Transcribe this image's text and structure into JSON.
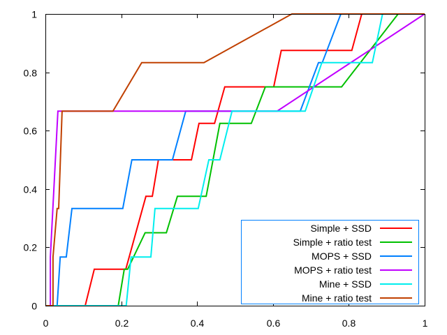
{
  "chart_data": {
    "type": "line",
    "title": "",
    "xlabel": "",
    "ylabel": "",
    "xlim": [
      0,
      1
    ],
    "ylim": [
      0,
      1
    ],
    "xticks": [
      "0",
      "0.2",
      "0.4",
      "0.6",
      "0.8",
      "1"
    ],
    "xtick_values": [
      0,
      0.2,
      0.4,
      0.6,
      0.8,
      1
    ],
    "yticks": [
      "0",
      "0.2",
      "0.4",
      "0.6",
      "0.8",
      "1"
    ],
    "ytick_values": [
      0,
      0.2,
      0.4,
      0.6,
      0.8,
      1
    ],
    "grid": false,
    "legend_position": "bottom-right",
    "series": [
      {
        "name": "Simple + SSD",
        "color": "#ff0000",
        "x": [
          0,
          0.105,
          0.129,
          0.212,
          0.265,
          0.282,
          0.298,
          0.385,
          0.405,
          0.446,
          0.473,
          0.602,
          0.622,
          0.808,
          0.834,
          1
        ],
        "y": [
          0,
          0,
          0.125,
          0.125,
          0.375,
          0.375,
          0.5,
          0.5,
          0.625,
          0.625,
          0.75,
          0.75,
          0.875,
          0.875,
          1,
          1
        ]
      },
      {
        "name": "Simple + ratio test",
        "color": "#00c000",
        "x": [
          0,
          0.192,
          0.208,
          0.217,
          0.263,
          0.319,
          0.348,
          0.424,
          0.46,
          0.543,
          0.58,
          0.781,
          0.93,
          1
        ],
        "y": [
          0,
          0,
          0.125,
          0.125,
          0.25,
          0.25,
          0.375,
          0.375,
          0.625,
          0.625,
          0.75,
          0.75,
          1,
          1
        ]
      },
      {
        "name": "MOPS + SSD",
        "color": "#0080ff",
        "x": [
          0,
          0.031,
          0.039,
          0.055,
          0.07,
          0.204,
          0.228,
          0.335,
          0.37,
          0.672,
          0.72,
          0.73,
          0.779,
          1
        ],
        "y": [
          0,
          0,
          0.167,
          0.167,
          0.333,
          0.333,
          0.5,
          0.5,
          0.667,
          0.667,
          0.833,
          0.833,
          1,
          1
        ]
      },
      {
        "name": "MOPS + ratio test",
        "color": "#c000ff",
        "x": [
          0,
          0.013,
          0.013,
          0.033,
          0.611,
          1
        ],
        "y": [
          0,
          0,
          0.167,
          0.667,
          0.667,
          1
        ]
      },
      {
        "name": "Mine + SSD",
        "color": "#00eeee",
        "x": [
          0,
          0.213,
          0.226,
          0.278,
          0.289,
          0.403,
          0.431,
          0.46,
          0.492,
          0.685,
          0.729,
          0.862,
          0.889,
          1
        ],
        "y": [
          0,
          0,
          0.167,
          0.167,
          0.333,
          0.333,
          0.5,
          0.5,
          0.667,
          0.667,
          0.833,
          0.833,
          1,
          1
        ]
      },
      {
        "name": "Mine + ratio test",
        "color": "#c04000",
        "x": [
          0,
          0.02,
          0.02,
          0.031,
          0.035,
          0.044,
          0.178,
          0.254,
          0.418,
          0.65,
          1
        ],
        "y": [
          0,
          0,
          0.167,
          0.333,
          0.333,
          0.667,
          0.667,
          0.833,
          0.833,
          1,
          1
        ]
      }
    ]
  },
  "legend": {
    "border_color": "#0080ff"
  }
}
